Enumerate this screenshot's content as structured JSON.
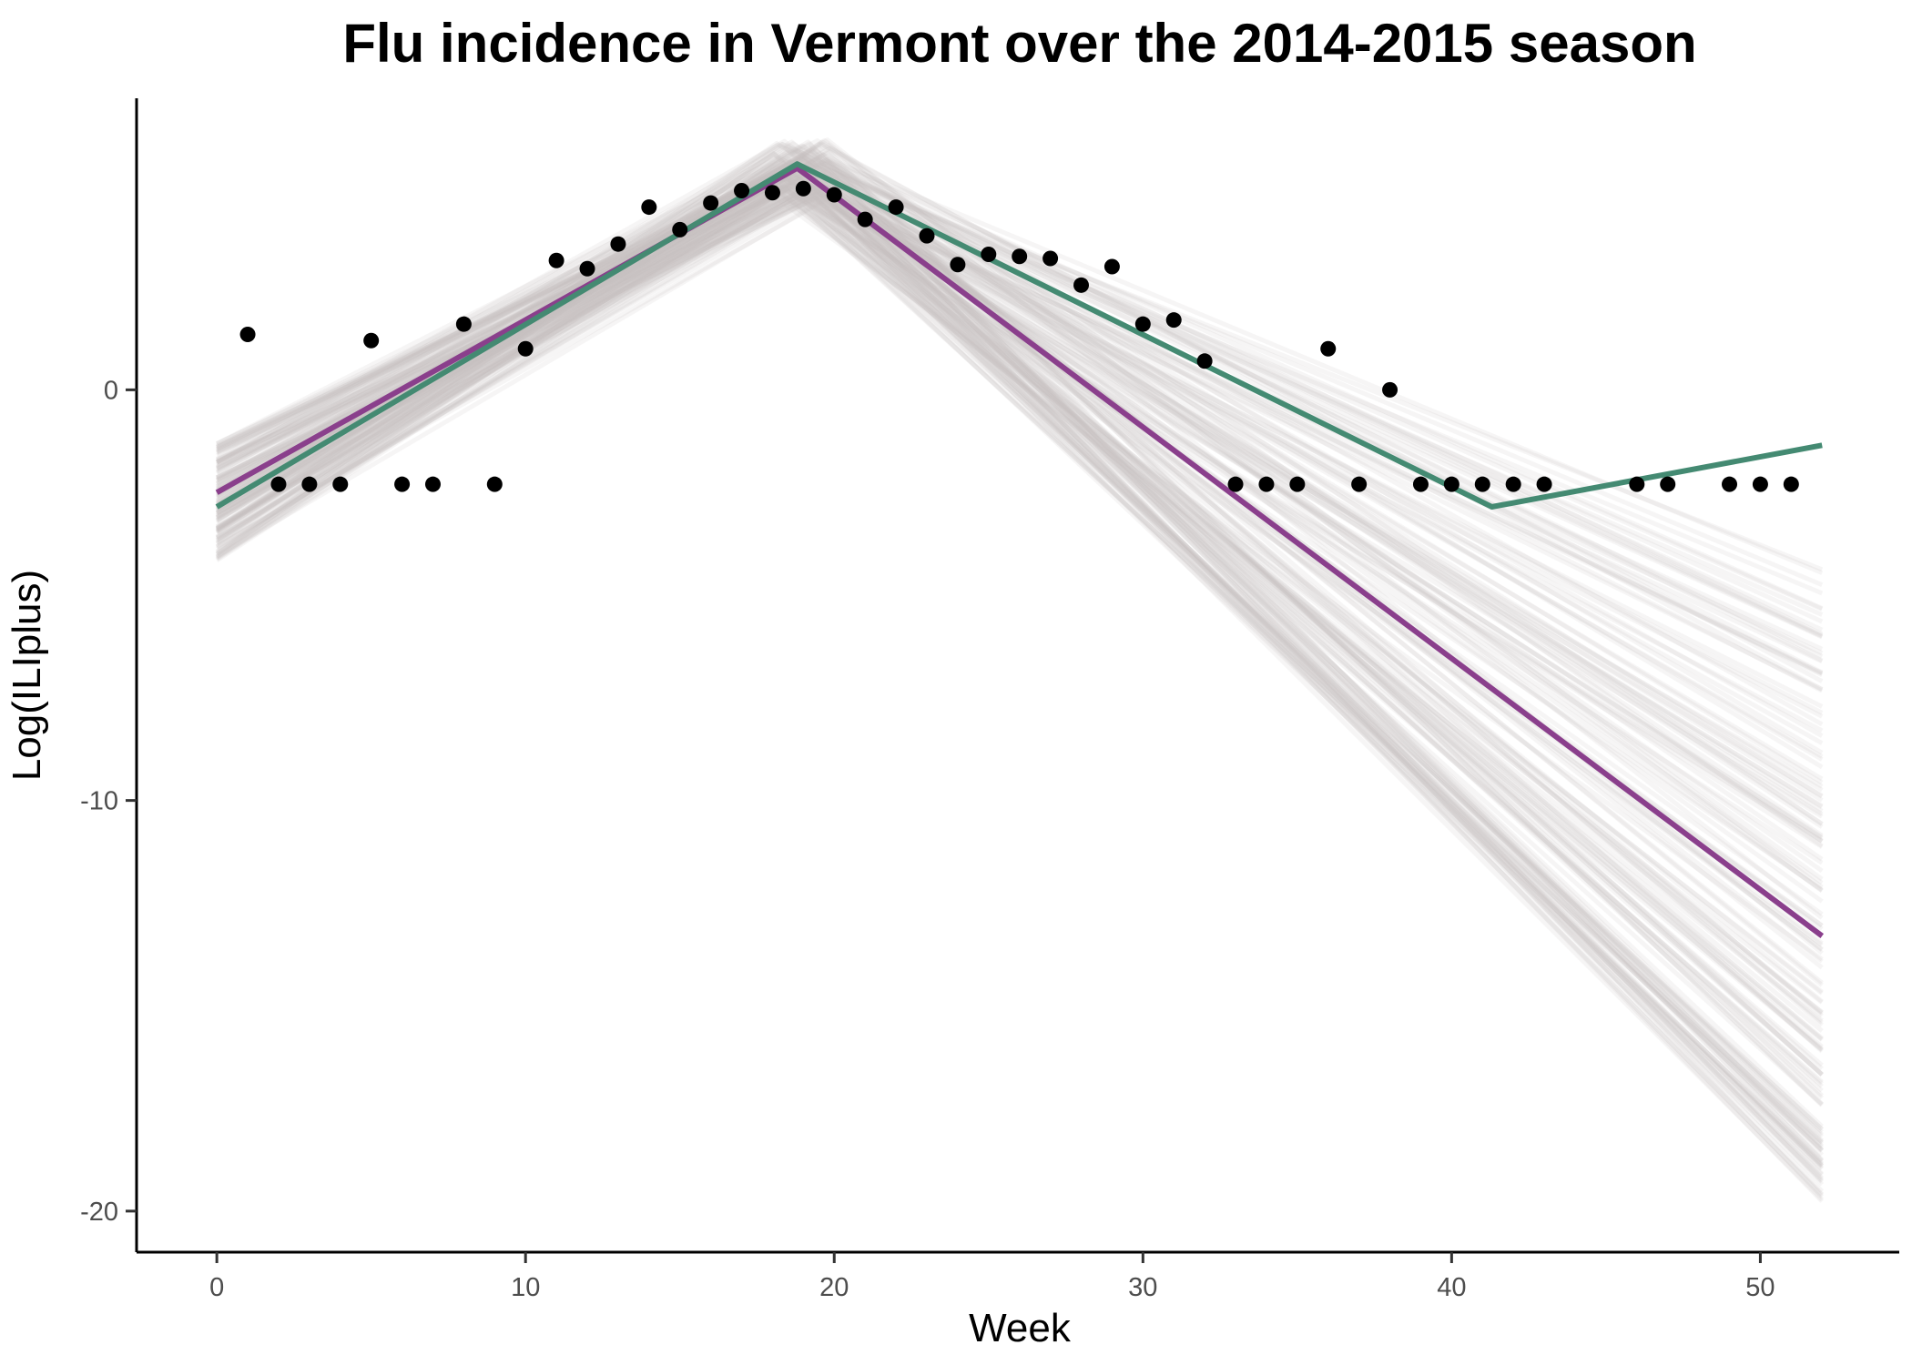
{
  "chart_data": {
    "type": "scatter",
    "title": "Flu incidence in Vermont over the 2014-2015 season",
    "xlabel": "Week",
    "ylabel": "Log(ILIplus)",
    "xlim": [
      -2.6,
      54.5
    ],
    "ylim": [
      -21.0,
      7.1
    ],
    "xticks": [
      0,
      10,
      20,
      30,
      40,
      50
    ],
    "yticks": [
      0,
      -10,
      -20
    ],
    "grid": false,
    "legend": "none",
    "colors": {
      "points": "#000000",
      "fit_purple": "#8a3f8c",
      "fit_green": "#448a72",
      "samples": "#c9bebe"
    },
    "points": {
      "x": [
        1,
        2,
        3,
        4,
        5,
        6,
        7,
        8,
        9,
        10,
        11,
        12,
        13,
        14,
        15,
        16,
        17,
        18,
        19,
        20,
        21,
        22,
        23,
        24,
        25,
        26,
        27,
        28,
        29,
        30,
        31,
        32,
        33,
        34,
        35,
        36,
        37,
        38,
        39,
        40,
        41,
        42,
        43,
        46,
        47,
        49,
        50,
        51
      ],
      "y": [
        1.35,
        -2.3,
        -2.3,
        -2.3,
        1.2,
        -2.3,
        -2.3,
        1.6,
        -2.3,
        1.0,
        3.15,
        2.95,
        3.55,
        4.45,
        3.9,
        4.55,
        4.85,
        4.8,
        4.9,
        4.75,
        4.15,
        4.45,
        3.75,
        3.05,
        3.3,
        3.25,
        3.2,
        2.55,
        3.0,
        1.6,
        1.7,
        0.7,
        -2.3,
        -2.3,
        -2.3,
        1.0,
        -2.3,
        0.0,
        -2.3,
        -2.3,
        -2.3,
        -2.3,
        -2.3,
        -2.3,
        -2.3,
        -2.3,
        -2.3,
        -2.3
      ]
    },
    "series": [
      {
        "x": [
          0,
          18.8,
          52
        ],
        "y": [
          -2.5,
          5.4,
          -13.3
        ],
        "color": "#8a3f8c"
      },
      {
        "x": [
          0,
          18.8,
          41.3,
          52
        ],
        "y": [
          -2.85,
          5.5,
          -2.85,
          -1.35
        ],
        "color": "#448a72"
      }
    ]
  }
}
